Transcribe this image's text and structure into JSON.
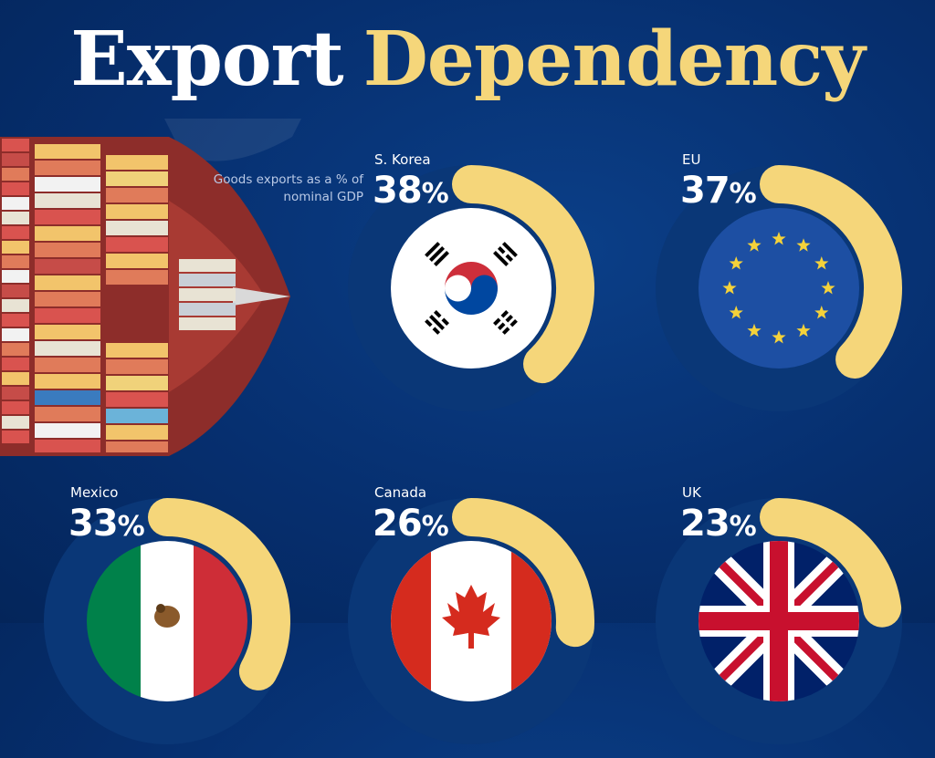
{
  "title": {
    "word1": "Export",
    "word2": "Dependency"
  },
  "subtitle": "Goods exports as a % of nominal GDP",
  "colors": {
    "background": "#062f6f",
    "accent": "#f5d67a",
    "track": "#0a3777"
  },
  "chart_data": {
    "type": "radial-bar",
    "title": "Export Dependency",
    "subtitle": "Goods exports as a % of nominal GDP",
    "unit": "%",
    "categories": [
      "S. Korea",
      "EU",
      "Mexico",
      "Canada",
      "UK"
    ],
    "values": [
      38,
      37,
      33,
      26,
      23
    ],
    "items": [
      {
        "country": "S. Korea",
        "value": 38,
        "label": "38%",
        "icon": "south-korea-flag-icon"
      },
      {
        "country": "EU",
        "value": 37,
        "label": "37%",
        "icon": "eu-flag-icon"
      },
      {
        "country": "Mexico",
        "value": 33,
        "label": "33%",
        "icon": "mexico-flag-icon"
      },
      {
        "country": "Canada",
        "value": 26,
        "label": "26%",
        "icon": "canada-flag-icon"
      },
      {
        "country": "UK",
        "value": 23,
        "label": "23%",
        "icon": "uk-flag-icon"
      }
    ]
  }
}
